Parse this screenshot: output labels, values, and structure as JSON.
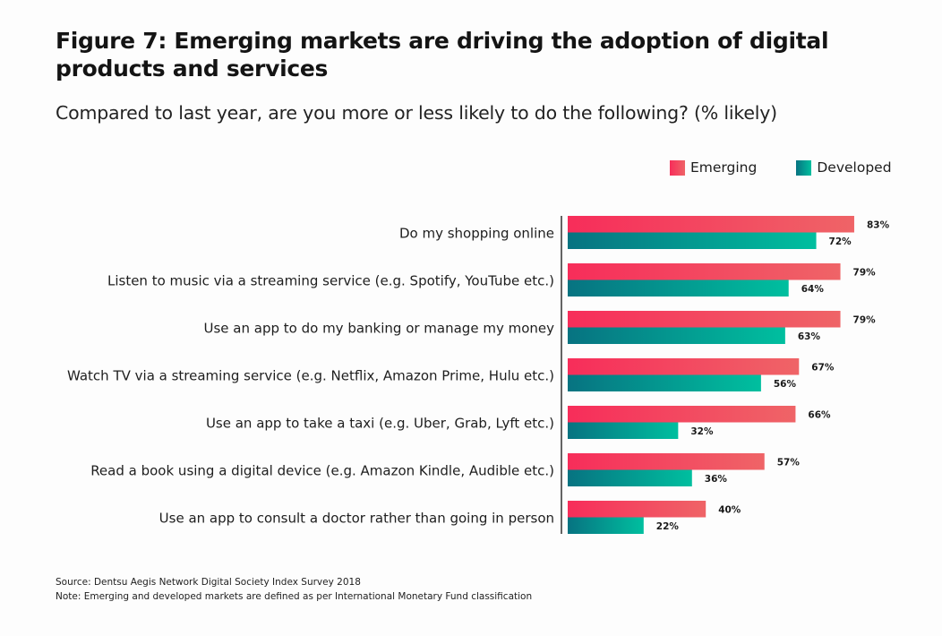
{
  "header": {
    "title": "Figure 7: Emerging markets are driving the adoption of digital products and services",
    "subtitle": "Compared to last year, are you more or less likely to do the following? (% likely)"
  },
  "legend": [
    {
      "label": "Emerging",
      "color_start": "#f72d5a",
      "color_end": "#ef6467"
    },
    {
      "label": "Developed",
      "color_start": "#077381",
      "color_end": "#00bf9f"
    }
  ],
  "footer": {
    "source": "Source: Dentsu Aegis Network Digital Society Index Survey 2018",
    "note": "Note: Emerging and developed markets are defined as per International Monetary Fund classification"
  },
  "chart_data": {
    "type": "bar",
    "orientation": "horizontal",
    "title": "Figure 7: Emerging markets are driving the adoption of digital products and services",
    "subtitle": "Compared to last year, are you more or less likely to do the following? (% likely)",
    "xlabel": "",
    "ylabel": "",
    "xlim": [
      0,
      100
    ],
    "grid": false,
    "legend_position": "top-right",
    "value_suffix": "%",
    "categories": [
      "Do my shopping online",
      "Listen to music via a streaming service (e.g. Spotify, YouTube etc.)",
      "Use an app to do my banking  or manage my money",
      "Watch TV via a streaming service (e.g. Netflix, Amazon Prime, Hulu etc.)",
      "Use an app to take a taxi (e.g. Uber, Grab, Lyft etc.)",
      "Read a book using a digital device (e.g. Amazon Kindle, Audible etc.)",
      "Use an app to consult a doctor rather than going in person"
    ],
    "series": [
      {
        "name": "Emerging",
        "values": [
          83,
          79,
          79,
          67,
          66,
          57,
          40
        ],
        "color_start": "#f72d5a",
        "color_end": "#ef6467"
      },
      {
        "name": "Developed",
        "values": [
          72,
          64,
          63,
          56,
          32,
          36,
          22
        ],
        "color_start": "#077381",
        "color_end": "#00bf9f"
      }
    ]
  }
}
